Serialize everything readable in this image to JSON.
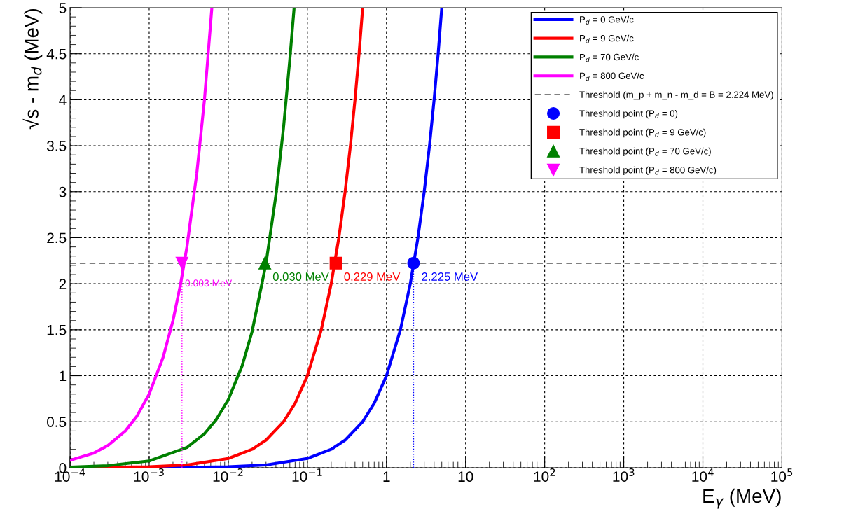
{
  "chart_data": {
    "type": "line",
    "xlabel": "E$_{γ}$ (MeV)",
    "ylabel": "√s - m$_{d}$ (MeV)",
    "log": "x",
    "grid": true,
    "legend": "top right",
    "marker": "none",
    "line_style": "solid",
    "xlim": [
      0.0001,
      100000
    ],
    "xticks": [
      {
        "value": 0.0001,
        "label": "10$^{−4}$"
      },
      {
        "value": 0.001,
        "label": "10$^{−3}$"
      },
      {
        "value": 0.01,
        "label": "10$^{−2}$"
      },
      {
        "value": 0.1,
        "label": "10$^{−1}$"
      },
      1,
      10,
      {
        "value": 100,
        "label": "10$^{2}$"
      },
      {
        "value": 1000,
        "label": "10$^{3}$"
      },
      {
        "value": 10000,
        "label": "10$^{4}$"
      },
      {
        "value": 100000,
        "label": "10$^{5}$"
      }
    ],
    "ylim": [
      0,
      5
    ],
    "yticks": [
      0,
      0.5,
      1,
      1.5,
      2,
      2.5,
      3,
      3.5,
      4,
      4.5,
      5
    ],
    "series": [
      {
        "name": "P$_{d}$ = 0 GeV/c",
        "color": "#0000ff",
        "x": [
          0.0001,
          0.001,
          0.01,
          0.03,
          0.1,
          0.2,
          0.3,
          0.5,
          0.7,
          1,
          1.5,
          2,
          2.5,
          3,
          3.5,
          4,
          4.5,
          5
        ],
        "values": [
          0,
          0,
          0.01,
          0.03,
          0.1,
          0.2,
          0.3,
          0.5,
          0.7,
          1,
          1.5,
          2,
          2.5,
          3,
          3.5,
          4,
          4.5,
          5
        ]
      },
      {
        "name": "P$_{d}$ = 9 GeV/c",
        "color": "#ff0000",
        "x": [
          0.0001,
          0.001,
          0.003,
          0.01,
          0.02,
          0.03,
          0.05,
          0.07,
          0.1,
          0.15,
          0.2,
          0.25,
          0.3,
          0.35,
          0.4,
          0.45,
          0.5
        ],
        "values": [
          0,
          0.01,
          0.03,
          0.1,
          0.2,
          0.3,
          0.5,
          0.7,
          1,
          1.5,
          2,
          2.5,
          3,
          3.5,
          4,
          4.5,
          5
        ]
      },
      {
        "name": "P$_{d}$ = 70 GeV/c",
        "color": "#008000",
        "x": [
          0.0001,
          0.0003,
          0.001,
          0.003,
          0.005,
          0.007,
          0.01,
          0.015,
          0.02,
          0.03,
          0.04,
          0.05,
          0.06,
          0.068
        ],
        "values": [
          0.007,
          0.022,
          0.074,
          0.22,
          0.37,
          0.52,
          0.74,
          1.11,
          1.48,
          2.22,
          2.96,
          3.7,
          4.44,
          5
        ]
      },
      {
        "name": "P$_{d}$ = 800 GeV/c",
        "color": "#ff00ff",
        "x": [
          0.0001,
          0.0002,
          0.0003,
          0.0005,
          0.0007,
          0.001,
          0.0015,
          0.002,
          0.0025,
          0.003,
          0.004,
          0.005,
          0.0062
        ],
        "values": [
          0.08,
          0.16,
          0.24,
          0.4,
          0.56,
          0.8,
          1.2,
          1.6,
          2.0,
          2.4,
          3.2,
          4.0,
          5.0
        ]
      },
      {
        "color": "#ff00ff",
        "line_style": "dotted",
        "x": [
          0.0026,
          0.0026
        ],
        "values": [
          0,
          2.224
        ]
      },
      {
        "color": "#0000ff",
        "line_style": "dotted",
        "x": [
          2.2,
          2.2
        ],
        "values": [
          0,
          2.224
        ]
      },
      {
        "name": "Threshold point (P$_{d}$ = 0)",
        "type": "scatter",
        "marker": "circle",
        "color": "#0000ff",
        "x": [
          2.2
        ],
        "values": [
          2.224
        ]
      },
      {
        "name": "Threshold point (P$_{d}$ = 9 GeV/c)",
        "type": "scatter",
        "marker": "square",
        "color": "#ff0000",
        "x": [
          0.23
        ],
        "values": [
          2.224
        ]
      },
      {
        "name": "Threshold point (P$_{d}$ = 70 GeV/c)",
        "type": "scatter",
        "marker": "triangle",
        "color": "#008000",
        "x": [
          0.029
        ],
        "values": [
          2.224
        ]
      },
      {
        "name": "Threshold point (P$_{d}$ = 800 GeV/c)",
        "type": "scatter",
        "marker": "triangle_down",
        "color": "#ff00ff",
        "x": [
          0.0026
        ],
        "values": [
          2.224
        ]
      }
    ],
    "ref_lines": [
      {
        "axis": "y",
        "value": 2.224,
        "label": "Threshold (m_p + m_n - m_d = B = 2.224 MeV)",
        "color": "#000000",
        "line_style": "dashed"
      }
    ],
    "annotations": [
      {
        "text": "0.003 MeV",
        "x": 0.0026,
        "y": 2.224
      },
      {
        "text": "0.030 MeV",
        "x": 0.029,
        "y": 2.224
      },
      {
        "text": "0.229 MeV",
        "x": 0.23,
        "y": 2.224
      },
      {
        "text": "2.225 MeV",
        "x": 2.2,
        "y": 2.224
      }
    ]
  }
}
